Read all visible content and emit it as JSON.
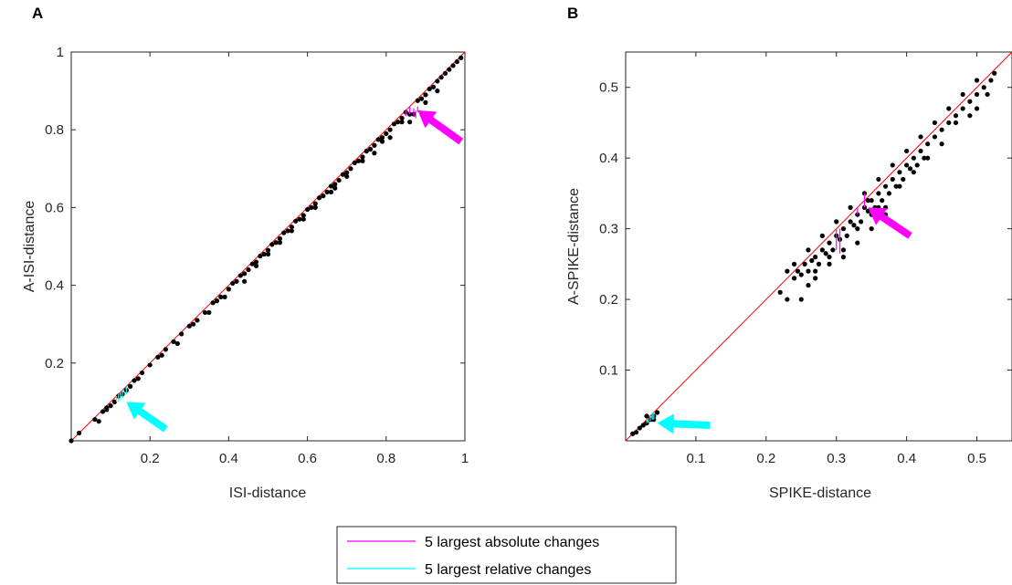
{
  "chart_data": [
    {
      "panel": "A",
      "type": "scatter",
      "xlabel": "ISI-distance",
      "ylabel": "A-ISI-distance",
      "xlim": [
        0,
        1
      ],
      "ylim": [
        0,
        1
      ],
      "xticks": [
        "0.2",
        "0.4",
        "0.6",
        "0.8",
        "1"
      ],
      "xtick_values": [
        0.2,
        0.4,
        0.6,
        0.8,
        1
      ],
      "yticks": [
        "0.2",
        "0.4",
        "0.6",
        "0.8",
        "1"
      ],
      "ytick_values": [
        0.2,
        0.4,
        0.6,
        0.8,
        1
      ],
      "diagonal_color": "#ff0000",
      "points": [
        [
          0.0,
          0.0
        ],
        [
          0.02,
          0.02
        ],
        [
          0.06,
          0.055
        ],
        [
          0.07,
          0.05
        ],
        [
          0.08,
          0.075
        ],
        [
          0.09,
          0.085
        ],
        [
          0.1,
          0.09
        ],
        [
          0.11,
          0.1
        ],
        [
          0.12,
          0.115
        ],
        [
          0.13,
          0.12
        ],
        [
          0.14,
          0.13
        ],
        [
          0.15,
          0.14
        ],
        [
          0.16,
          0.155
        ],
        [
          0.18,
          0.175
        ],
        [
          0.2,
          0.195
        ],
        [
          0.22,
          0.215
        ],
        [
          0.24,
          0.235
        ],
        [
          0.26,
          0.255
        ],
        [
          0.28,
          0.275
        ],
        [
          0.3,
          0.295
        ],
        [
          0.32,
          0.31
        ],
        [
          0.34,
          0.33
        ],
        [
          0.36,
          0.355
        ],
        [
          0.37,
          0.36
        ],
        [
          0.38,
          0.37
        ],
        [
          0.4,
          0.39
        ],
        [
          0.41,
          0.405
        ],
        [
          0.42,
          0.41
        ],
        [
          0.43,
          0.425
        ],
        [
          0.44,
          0.43
        ],
        [
          0.45,
          0.44
        ],
        [
          0.46,
          0.455
        ],
        [
          0.47,
          0.46
        ],
        [
          0.48,
          0.475
        ],
        [
          0.49,
          0.48
        ],
        [
          0.5,
          0.49
        ],
        [
          0.51,
          0.505
        ],
        [
          0.52,
          0.51
        ],
        [
          0.53,
          0.52
        ],
        [
          0.54,
          0.535
        ],
        [
          0.55,
          0.54
        ],
        [
          0.56,
          0.55
        ],
        [
          0.57,
          0.565
        ],
        [
          0.58,
          0.57
        ],
        [
          0.59,
          0.58
        ],
        [
          0.6,
          0.595
        ],
        [
          0.61,
          0.6
        ],
        [
          0.62,
          0.61
        ],
        [
          0.63,
          0.625
        ],
        [
          0.64,
          0.63
        ],
        [
          0.65,
          0.64
        ],
        [
          0.66,
          0.655
        ],
        [
          0.67,
          0.66
        ],
        [
          0.68,
          0.67
        ],
        [
          0.69,
          0.685
        ],
        [
          0.7,
          0.69
        ],
        [
          0.71,
          0.7
        ],
        [
          0.72,
          0.715
        ],
        [
          0.73,
          0.72
        ],
        [
          0.74,
          0.73
        ],
        [
          0.75,
          0.745
        ],
        [
          0.76,
          0.75
        ],
        [
          0.77,
          0.76
        ],
        [
          0.78,
          0.775
        ],
        [
          0.79,
          0.78
        ],
        [
          0.8,
          0.79
        ],
        [
          0.81,
          0.8
        ],
        [
          0.82,
          0.815
        ],
        [
          0.83,
          0.82
        ],
        [
          0.84,
          0.83
        ],
        [
          0.85,
          0.845
        ],
        [
          0.86,
          0.84
        ],
        [
          0.87,
          0.84
        ],
        [
          0.88,
          0.875
        ],
        [
          0.89,
          0.88
        ],
        [
          0.9,
          0.89
        ],
        [
          0.91,
          0.905
        ],
        [
          0.92,
          0.91
        ],
        [
          0.93,
          0.925
        ],
        [
          0.94,
          0.935
        ],
        [
          0.95,
          0.945
        ],
        [
          0.96,
          0.955
        ],
        [
          0.97,
          0.965
        ],
        [
          0.98,
          0.975
        ],
        [
          0.99,
          0.985
        ],
        [
          0.27,
          0.25
        ],
        [
          0.35,
          0.33
        ],
        [
          0.44,
          0.41
        ],
        [
          0.5,
          0.48
        ],
        [
          0.56,
          0.54
        ],
        [
          0.62,
          0.6
        ],
        [
          0.66,
          0.64
        ],
        [
          0.7,
          0.68
        ],
        [
          0.74,
          0.72
        ],
        [
          0.77,
          0.74
        ],
        [
          0.79,
          0.77
        ],
        [
          0.81,
          0.78
        ],
        [
          0.84,
          0.82
        ],
        [
          0.86,
          0.82
        ],
        [
          0.9,
          0.87
        ],
        [
          0.93,
          0.9
        ],
        [
          0.67,
          0.65
        ],
        [
          0.59,
          0.57
        ],
        [
          0.53,
          0.51
        ],
        [
          0.47,
          0.45
        ],
        [
          0.39,
          0.37
        ],
        [
          0.31,
          0.3
        ],
        [
          0.23,
          0.22
        ],
        [
          0.17,
          0.16
        ],
        [
          0.09,
          0.08
        ]
      ],
      "highlight_absolute": [
        [
          0.86,
          0.86,
          0.84
        ],
        [
          0.87,
          0.855,
          0.835
        ],
        [
          0.88,
          0.86,
          0.845
        ],
        [
          0.85,
          0.85,
          0.835
        ],
        [
          0.875,
          0.85,
          0.83
        ]
      ],
      "highlight_relative": [
        [
          0.12,
          0.12,
          0.1
        ],
        [
          0.13,
          0.13,
          0.11
        ],
        [
          0.125,
          0.125,
          0.105
        ],
        [
          0.14,
          0.14,
          0.12
        ],
        [
          0.115,
          0.115,
          0.1
        ]
      ],
      "arrow_absolute": {
        "tail": [
          0.99,
          0.77
        ],
        "head": [
          0.88,
          0.85
        ]
      },
      "arrow_relative": {
        "tail": [
          0.24,
          0.03
        ],
        "head": [
          0.14,
          0.1
        ]
      }
    },
    {
      "panel": "B",
      "type": "scatter",
      "xlabel": "SPIKE-distance",
      "ylabel": "A-SPIKE-distance",
      "xlim": [
        0,
        0.55
      ],
      "ylim": [
        0,
        0.55
      ],
      "xticks": [
        "0.1",
        "0.2",
        "0.3",
        "0.4",
        "0.5"
      ],
      "xtick_values": [
        0.1,
        0.2,
        0.3,
        0.4,
        0.5
      ],
      "yticks": [
        "0.1",
        "0.2",
        "0.3",
        "0.4",
        "0.5"
      ],
      "ytick_values": [
        0.1,
        0.2,
        0.3,
        0.4,
        0.5
      ],
      "diagonal_color": "#ff0000",
      "points": [
        [
          0.01,
          0.01
        ],
        [
          0.015,
          0.012
        ],
        [
          0.02,
          0.018
        ],
        [
          0.025,
          0.022
        ],
        [
          0.03,
          0.025
        ],
        [
          0.035,
          0.03
        ],
        [
          0.04,
          0.035
        ],
        [
          0.045,
          0.04
        ],
        [
          0.03,
          0.035
        ],
        [
          0.04,
          0.03
        ],
        [
          0.22,
          0.21
        ],
        [
          0.23,
          0.2
        ],
        [
          0.24,
          0.23
        ],
        [
          0.245,
          0.24
        ],
        [
          0.25,
          0.235
        ],
        [
          0.255,
          0.25
        ],
        [
          0.26,
          0.24
        ],
        [
          0.265,
          0.255
        ],
        [
          0.27,
          0.26
        ],
        [
          0.275,
          0.25
        ],
        [
          0.28,
          0.27
        ],
        [
          0.285,
          0.265
        ],
        [
          0.29,
          0.28
        ],
        [
          0.295,
          0.27
        ],
        [
          0.3,
          0.29
        ],
        [
          0.305,
          0.285
        ],
        [
          0.31,
          0.3
        ],
        [
          0.315,
          0.29
        ],
        [
          0.32,
          0.31
        ],
        [
          0.325,
          0.305
        ],
        [
          0.33,
          0.32
        ],
        [
          0.335,
          0.31
        ],
        [
          0.34,
          0.33
        ],
        [
          0.345,
          0.325
        ],
        [
          0.35,
          0.34
        ],
        [
          0.355,
          0.33
        ],
        [
          0.36,
          0.35
        ],
        [
          0.365,
          0.34
        ],
        [
          0.37,
          0.36
        ],
        [
          0.375,
          0.35
        ],
        [
          0.38,
          0.37
        ],
        [
          0.385,
          0.36
        ],
        [
          0.39,
          0.38
        ],
        [
          0.395,
          0.37
        ],
        [
          0.4,
          0.39
        ],
        [
          0.405,
          0.385
        ],
        [
          0.41,
          0.4
        ],
        [
          0.415,
          0.39
        ],
        [
          0.42,
          0.41
        ],
        [
          0.425,
          0.4
        ],
        [
          0.43,
          0.42
        ],
        [
          0.44,
          0.43
        ],
        [
          0.45,
          0.44
        ],
        [
          0.46,
          0.45
        ],
        [
          0.47,
          0.46
        ],
        [
          0.48,
          0.47
        ],
        [
          0.49,
          0.48
        ],
        [
          0.5,
          0.49
        ],
        [
          0.51,
          0.5
        ],
        [
          0.52,
          0.51
        ],
        [
          0.525,
          0.52
        ],
        [
          0.515,
          0.49
        ],
        [
          0.5,
          0.47
        ],
        [
          0.49,
          0.46
        ],
        [
          0.47,
          0.45
        ],
        [
          0.45,
          0.42
        ],
        [
          0.43,
          0.4
        ],
        [
          0.41,
          0.38
        ],
        [
          0.39,
          0.36
        ],
        [
          0.37,
          0.33
        ],
        [
          0.35,
          0.32
        ],
        [
          0.33,
          0.3
        ],
        [
          0.31,
          0.27
        ],
        [
          0.29,
          0.25
        ],
        [
          0.27,
          0.23
        ],
        [
          0.25,
          0.2
        ],
        [
          0.24,
          0.25
        ],
        [
          0.26,
          0.27
        ],
        [
          0.28,
          0.29
        ],
        [
          0.3,
          0.31
        ],
        [
          0.32,
          0.33
        ],
        [
          0.34,
          0.35
        ],
        [
          0.36,
          0.37
        ],
        [
          0.38,
          0.39
        ],
        [
          0.4,
          0.41
        ],
        [
          0.42,
          0.43
        ],
        [
          0.44,
          0.45
        ],
        [
          0.46,
          0.47
        ],
        [
          0.48,
          0.49
        ],
        [
          0.5,
          0.51
        ],
        [
          0.33,
          0.28
        ],
        [
          0.31,
          0.26
        ],
        [
          0.35,
          0.3
        ],
        [
          0.37,
          0.32
        ],
        [
          0.29,
          0.26
        ],
        [
          0.27,
          0.24
        ],
        [
          0.26,
          0.22
        ],
        [
          0.23,
          0.24
        ],
        [
          0.345,
          0.34
        ],
        [
          0.36,
          0.33
        ]
      ],
      "highlight_absolute": [
        [
          0.3,
          0.3,
          0.27
        ],
        [
          0.305,
          0.3,
          0.265
        ],
        [
          0.33,
          0.33,
          0.32
        ],
        [
          0.34,
          0.35,
          0.33
        ],
        [
          0.36,
          0.35,
          0.35
        ]
      ],
      "highlight_relative": [
        [
          0.03,
          0.03,
          0.025
        ],
        [
          0.035,
          0.035,
          0.028
        ],
        [
          0.04,
          0.04,
          0.03
        ],
        [
          0.032,
          0.032,
          0.026
        ],
        [
          0.038,
          0.04,
          0.03
        ]
      ],
      "arrow_absolute": {
        "tail": [
          0.405,
          0.29
        ],
        "head": [
          0.345,
          0.33
        ]
      },
      "arrow_relative": {
        "tail": [
          0.12,
          0.022
        ],
        "head": [
          0.045,
          0.025
        ]
      }
    }
  ],
  "legend": {
    "items": [
      {
        "label": "5 largest absolute changes",
        "color": "#ff00ff"
      },
      {
        "label": "5 largest relative changes",
        "color": "#00ffff"
      }
    ]
  }
}
